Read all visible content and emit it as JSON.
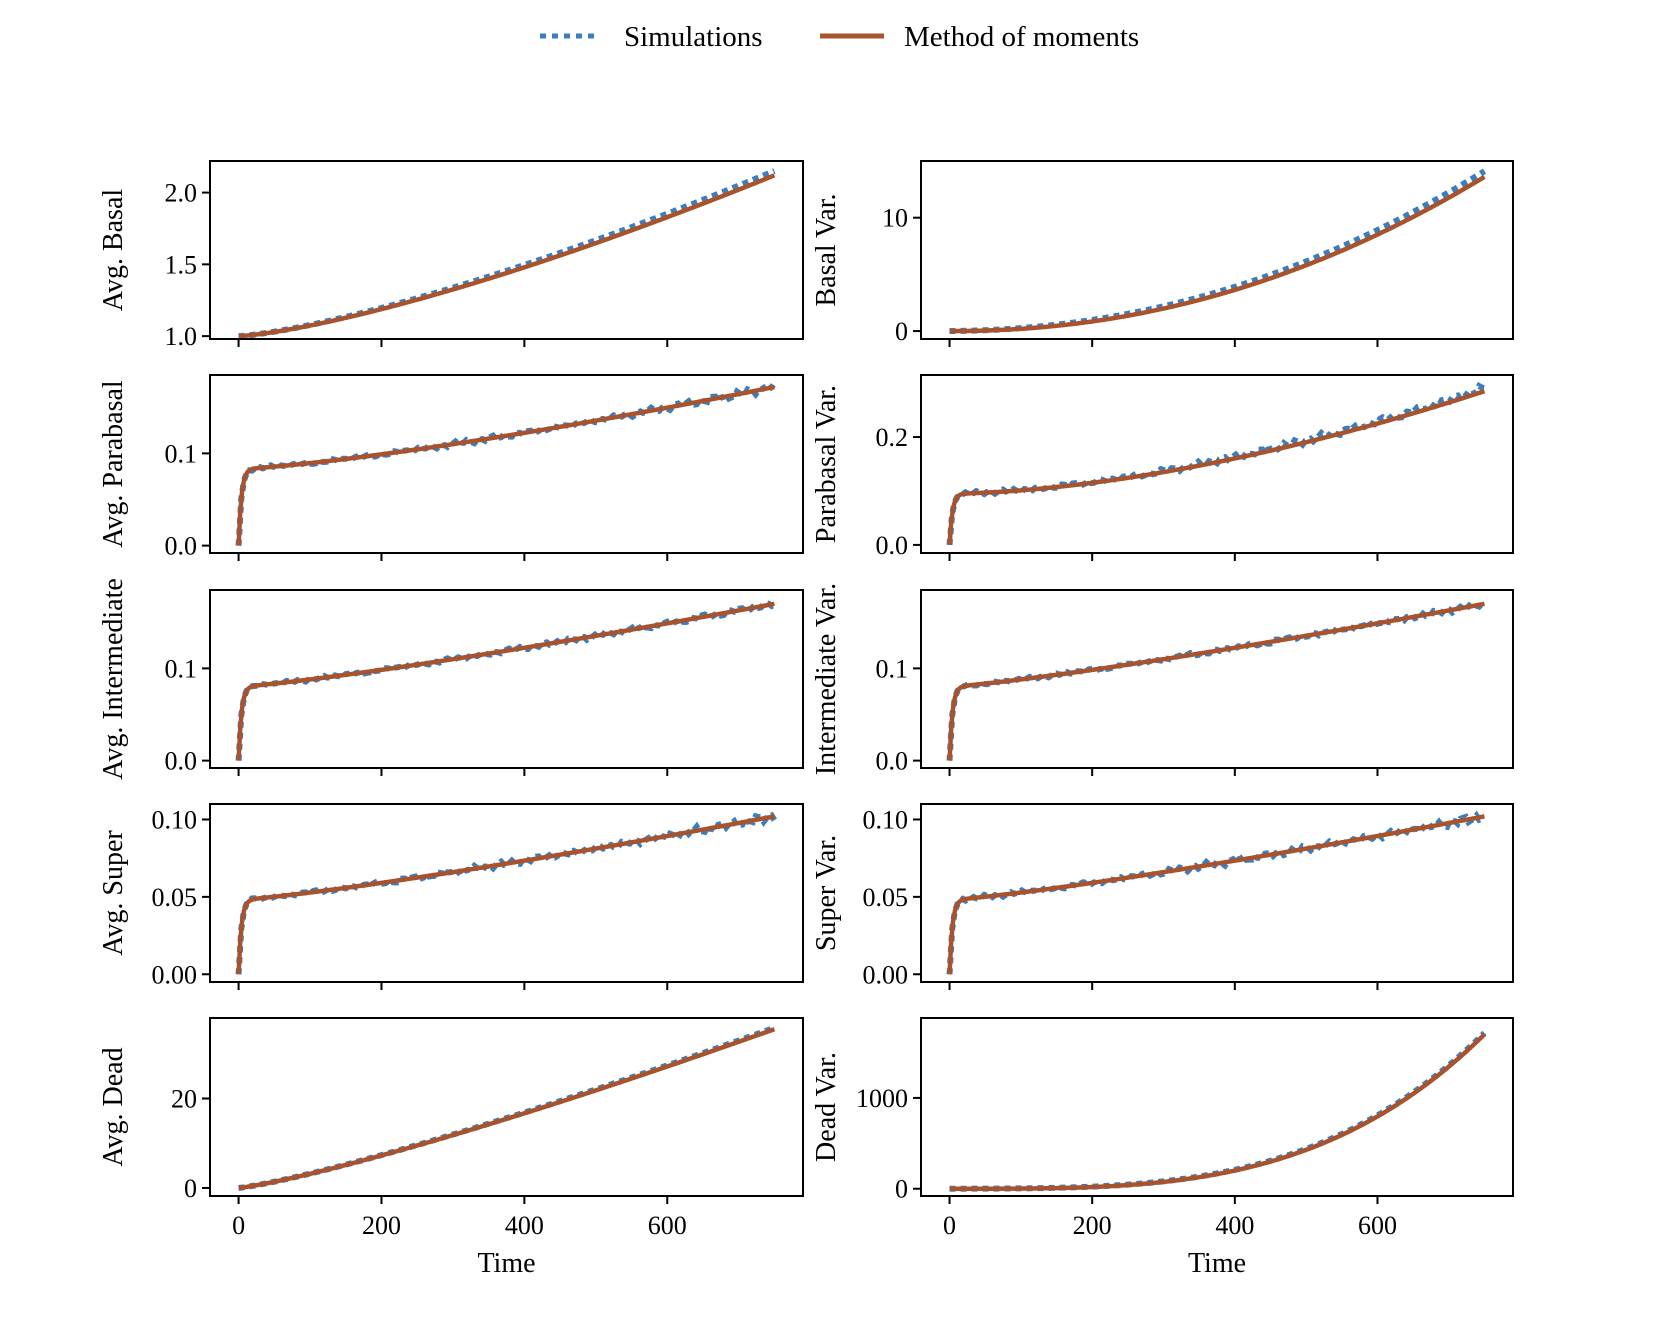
{
  "legend": {
    "simulations_label": "Simulations",
    "moments_label": "Method of moments",
    "location": "top-center"
  },
  "colors": {
    "simulations": "#3a7ebf",
    "moments": "#a9532c",
    "axes": "#000000",
    "background": "#ffffff"
  },
  "chart_data": [
    {
      "type": "line",
      "id": "avg-basal",
      "ylabel": "Avg. Basal",
      "ylim": [
        0.98,
        2.22
      ],
      "yticks": [
        1.0,
        1.5,
        2.0
      ],
      "ytick_labels": [
        "1.0",
        "1.5",
        "2.0"
      ],
      "xlim": [
        -40,
        790
      ],
      "xticks": [
        0,
        200,
        400,
        600
      ],
      "xtick_labels": [],
      "xlabel": "",
      "curve": {
        "kind": "power",
        "y0": 1.0,
        "y1": 2.12,
        "p": 1.35
      },
      "simulations": {
        "offset_end": 0.03,
        "noise": 0.0
      }
    },
    {
      "type": "line",
      "id": "basal-var",
      "ylabel": "Basal Var.",
      "ylim": [
        -0.7,
        15.0
      ],
      "yticks": [
        0,
        10
      ],
      "ytick_labels": [
        "0",
        "10"
      ],
      "xlim": [
        -40,
        790
      ],
      "xticks": [
        0,
        200,
        400,
        600
      ],
      "xtick_labels": [],
      "xlabel": "",
      "curve": {
        "kind": "power",
        "y0": 0.0,
        "y1": 13.6,
        "p": 2.1
      },
      "simulations": {
        "offset_end": 0.5,
        "noise": 0.0
      }
    },
    {
      "type": "line",
      "id": "avg-parabasal",
      "ylabel": "Avg. Parabasal",
      "ylim": [
        -0.008,
        0.185
      ],
      "yticks": [
        0.0,
        0.1
      ],
      "ytick_labels": [
        "0.0",
        "0.1"
      ],
      "xlim": [
        -40,
        790
      ],
      "xticks": [
        0,
        200,
        400,
        600
      ],
      "xtick_labels": [],
      "xlabel": "",
      "curve": {
        "kind": "rise_power",
        "y0": 0.0,
        "a": 0.083,
        "a1": 0.172,
        "tau": 4,
        "p": 1.3
      },
      "simulations": {
        "offset_end": 0.0,
        "noise": 0.0025
      }
    },
    {
      "type": "line",
      "id": "parabasal-var",
      "ylabel": "Parabasal Var.",
      "ylim": [
        -0.015,
        0.315
      ],
      "yticks": [
        0.0,
        0.2
      ],
      "ytick_labels": [
        "0.0",
        "0.2"
      ],
      "xlim": [
        -40,
        790
      ],
      "xticks": [
        0,
        200,
        400,
        600
      ],
      "xtick_labels": [],
      "xlabel": "",
      "curve": {
        "kind": "rise_power",
        "y0": 0.0,
        "a": 0.095,
        "a1": 0.285,
        "tau": 4,
        "p": 1.7
      },
      "simulations": {
        "offset_end": 0.005,
        "noise": 0.005
      }
    },
    {
      "type": "line",
      "id": "avg-intermediate",
      "ylabel": "Avg. Intermediate",
      "ylim": [
        -0.008,
        0.185
      ],
      "yticks": [
        0.0,
        0.1
      ],
      "ytick_labels": [
        "0.0",
        "0.1"
      ],
      "xlim": [
        -40,
        790
      ],
      "xticks": [
        0,
        200,
        400,
        600
      ],
      "xtick_labels": [],
      "xlabel": "",
      "curve": {
        "kind": "rise_power",
        "y0": 0.0,
        "a": 0.08,
        "a1": 0.17,
        "tau": 4,
        "p": 1.2
      },
      "simulations": {
        "offset_end": 0.0,
        "noise": 0.0022
      }
    },
    {
      "type": "line",
      "id": "intermediate-var",
      "ylabel": "Intermediate Var.",
      "ylim": [
        -0.008,
        0.185
      ],
      "yticks": [
        0.0,
        0.1
      ],
      "ytick_labels": [
        "0.0",
        "0.1"
      ],
      "xlim": [
        -40,
        790
      ],
      "xticks": [
        0,
        200,
        400,
        600
      ],
      "xtick_labels": [],
      "xlabel": "",
      "curve": {
        "kind": "rise_power",
        "y0": 0.0,
        "a": 0.08,
        "a1": 0.17,
        "tau": 4,
        "p": 1.2
      },
      "simulations": {
        "offset_end": 0.0,
        "noise": 0.0022
      }
    },
    {
      "type": "line",
      "id": "avg-super",
      "ylabel": "Avg. Super",
      "ylim": [
        -0.005,
        0.11
      ],
      "yticks": [
        0.0,
        0.05,
        0.1
      ],
      "ytick_labels": [
        "0.00",
        "0.05",
        "0.10"
      ],
      "xlim": [
        -40,
        790
      ],
      "xticks": [
        0,
        200,
        400,
        600
      ],
      "xtick_labels": [],
      "xlabel": "",
      "curve": {
        "kind": "rise_power",
        "y0": 0.0,
        "a": 0.048,
        "a1": 0.102,
        "tau": 4,
        "p": 1.2
      },
      "simulations": {
        "offset_end": 0.0,
        "noise": 0.0018
      }
    },
    {
      "type": "line",
      "id": "super-var",
      "ylabel": "Super Var.",
      "ylim": [
        -0.005,
        0.11
      ],
      "yticks": [
        0.0,
        0.05,
        0.1
      ],
      "ytick_labels": [
        "0.00",
        "0.05",
        "0.10"
      ],
      "xlim": [
        -40,
        790
      ],
      "xticks": [
        0,
        200,
        400,
        600
      ],
      "xtick_labels": [],
      "xlabel": "",
      "curve": {
        "kind": "rise_power",
        "y0": 0.0,
        "a": 0.048,
        "a1": 0.102,
        "tau": 4,
        "p": 1.2
      },
      "simulations": {
        "offset_end": 0.0,
        "noise": 0.0018
      }
    },
    {
      "type": "line",
      "id": "avg-dead",
      "ylabel": "Avg. Dead",
      "ylim": [
        -1.8,
        38.0
      ],
      "yticks": [
        0,
        20
      ],
      "ytick_labels": [
        "0",
        "20"
      ],
      "xlim": [
        -40,
        790
      ],
      "xticks": [
        0,
        200,
        400,
        600
      ],
      "xtick_labels": [
        "0",
        "200",
        "400",
        "600"
      ],
      "xlabel": "Time",
      "curve": {
        "kind": "power",
        "y0": 0.0,
        "y1": 35.5,
        "p": 1.2
      },
      "simulations": {
        "offset_end": 0.3,
        "noise": 0.0
      }
    },
    {
      "type": "line",
      "id": "dead-var",
      "ylabel": "Dead Var.",
      "ylim": [
        -80,
        1880
      ],
      "yticks": [
        0,
        1000
      ],
      "ytick_labels": [
        "0",
        "1000"
      ],
      "xlim": [
        -40,
        790
      ],
      "xticks": [
        0,
        200,
        400,
        600
      ],
      "xtick_labels": [
        "0",
        "200",
        "400",
        "600"
      ],
      "xlabel": "Time",
      "curve": {
        "kind": "power",
        "y0": 0.0,
        "y1": 1700,
        "p": 3.4
      },
      "simulations": {
        "offset_end": 15,
        "noise": 0.0
      }
    }
  ],
  "x_max": 750
}
